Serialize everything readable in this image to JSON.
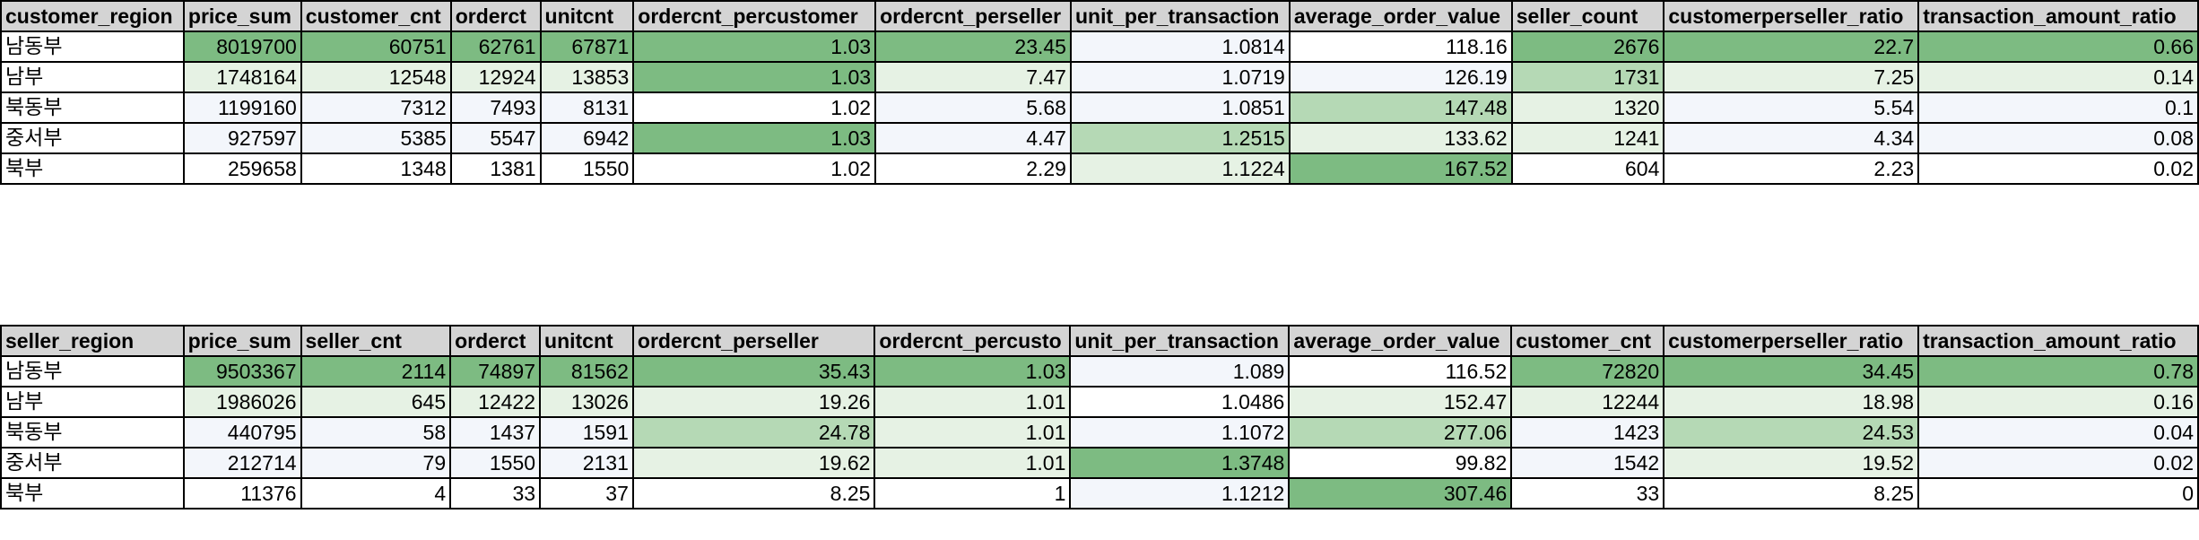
{
  "palette": {
    "header_bg": "#d4d4d4",
    "heat_strong": "#7dbb82",
    "heat_mid": "#b5d9b5",
    "heat_light": "#e6f2e4",
    "heat_faint": "#f3f6fb",
    "white": "#ffffff",
    "border": "#000000"
  },
  "customer_table": {
    "headers": [
      "customer_region",
      "price_sum",
      "customer_cnt",
      "orderct",
      "unitcnt",
      "ordercnt_percustomer",
      "ordercnt_perseller",
      "unit_per_transaction",
      "average_order_value",
      "seller_count",
      "customerperseller_ratio",
      "transaction_amount_ratio"
    ],
    "rows": [
      {
        "cells": [
          "남동부",
          "8019700",
          "60751",
          "62761",
          "67871",
          "1.03",
          "23.45",
          "1.0814",
          "118.16",
          "2676",
          "22.7",
          "0.66"
        ],
        "shades": [
          "white",
          "heat_strong",
          "heat_strong",
          "heat_strong",
          "heat_strong",
          "heat_strong",
          "heat_strong",
          "heat_faint",
          "white",
          "heat_strong",
          "heat_strong",
          "heat_strong"
        ]
      },
      {
        "cells": [
          "남부",
          "1748164",
          "12548",
          "12924",
          "13853",
          "1.03",
          "7.47",
          "1.0719",
          "126.19",
          "1731",
          "7.25",
          "0.14"
        ],
        "shades": [
          "white",
          "heat_light",
          "heat_light",
          "heat_light",
          "heat_light",
          "heat_strong",
          "heat_light",
          "heat_faint",
          "heat_faint",
          "heat_mid",
          "heat_light",
          "heat_light"
        ]
      },
      {
        "cells": [
          "북동부",
          "1199160",
          "7312",
          "7493",
          "8131",
          "1.02",
          "5.68",
          "1.0851",
          "147.48",
          "1320",
          "5.54",
          "0.1"
        ],
        "shades": [
          "white",
          "heat_faint",
          "heat_faint",
          "heat_faint",
          "heat_faint",
          "white",
          "heat_faint",
          "heat_faint",
          "heat_mid",
          "heat_light",
          "heat_faint",
          "heat_faint"
        ]
      },
      {
        "cells": [
          "중서부",
          "927597",
          "5385",
          "5547",
          "6942",
          "1.03",
          "4.47",
          "1.2515",
          "133.62",
          "1241",
          "4.34",
          "0.08"
        ],
        "shades": [
          "white",
          "heat_faint",
          "heat_faint",
          "heat_faint",
          "heat_faint",
          "heat_strong",
          "heat_faint",
          "heat_mid",
          "heat_light",
          "heat_light",
          "heat_faint",
          "heat_faint"
        ]
      },
      {
        "cells": [
          "북부",
          "259658",
          "1348",
          "1381",
          "1550",
          "1.02",
          "2.29",
          "1.1224",
          "167.52",
          "604",
          "2.23",
          "0.02"
        ],
        "shades": [
          "white",
          "white",
          "white",
          "white",
          "white",
          "white",
          "white",
          "heat_light",
          "heat_strong",
          "white",
          "white",
          "white"
        ]
      }
    ]
  },
  "seller_table": {
    "headers": [
      "seller_region",
      "price_sum",
      "seller_cnt",
      "orderct",
      "unitcnt",
      "ordercnt_perseller",
      "ordercnt_percusto",
      "unit_per_transaction",
      "average_order_value",
      "customer_cnt",
      "customerperseller_ratio",
      "transaction_amount_ratio"
    ],
    "rows": [
      {
        "cells": [
          "남동부",
          "9503367",
          "2114",
          "74897",
          "81562",
          "35.43",
          "1.03",
          "1.089",
          "116.52",
          "72820",
          "34.45",
          "0.78"
        ],
        "shades": [
          "white",
          "heat_strong",
          "heat_strong",
          "heat_strong",
          "heat_strong",
          "heat_strong",
          "heat_strong",
          "heat_faint",
          "white",
          "heat_strong",
          "heat_strong",
          "heat_strong"
        ]
      },
      {
        "cells": [
          "남부",
          "1986026",
          "645",
          "12422",
          "13026",
          "19.26",
          "1.01",
          "1.0486",
          "152.47",
          "12244",
          "18.98",
          "0.16"
        ],
        "shades": [
          "white",
          "heat_light",
          "heat_light",
          "heat_light",
          "heat_light",
          "heat_light",
          "heat_light",
          "white",
          "heat_light",
          "heat_light",
          "heat_light",
          "heat_light"
        ]
      },
      {
        "cells": [
          "북동부",
          "440795",
          "58",
          "1437",
          "1591",
          "24.78",
          "1.01",
          "1.1072",
          "277.06",
          "1423",
          "24.53",
          "0.04"
        ],
        "shades": [
          "white",
          "heat_faint",
          "heat_faint",
          "heat_faint",
          "heat_faint",
          "heat_mid",
          "heat_light",
          "heat_faint",
          "heat_mid",
          "heat_faint",
          "heat_mid",
          "heat_faint"
        ]
      },
      {
        "cells": [
          "중서부",
          "212714",
          "79",
          "1550",
          "2131",
          "19.62",
          "1.01",
          "1.3748",
          "99.82",
          "1542",
          "19.52",
          "0.02"
        ],
        "shades": [
          "white",
          "heat_faint",
          "heat_faint",
          "heat_faint",
          "heat_faint",
          "heat_light",
          "heat_light",
          "heat_strong",
          "white",
          "heat_faint",
          "heat_light",
          "heat_faint"
        ]
      },
      {
        "cells": [
          "북부",
          "11376",
          "4",
          "33",
          "37",
          "8.25",
          "1",
          "1.1212",
          "307.46",
          "33",
          "8.25",
          "0"
        ],
        "shades": [
          "white",
          "white",
          "white",
          "white",
          "white",
          "white",
          "white",
          "heat_faint",
          "heat_strong",
          "white",
          "white",
          "white"
        ]
      }
    ]
  }
}
